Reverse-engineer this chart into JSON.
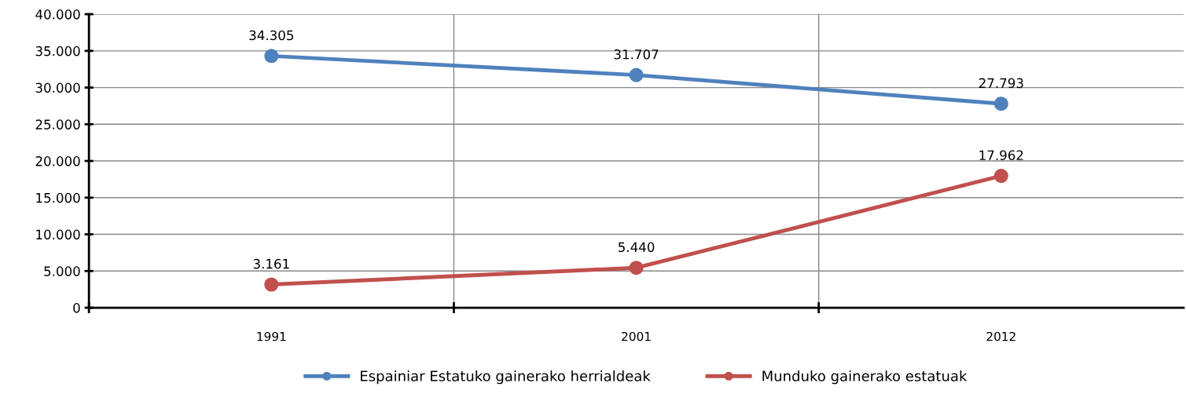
{
  "chart_data": {
    "type": "line",
    "categories": [
      "1991",
      "2001",
      "2012"
    ],
    "series": [
      {
        "name": "Espainiar Estatuko gainerako herrialdeak",
        "color": "#4f81bd",
        "values": [
          34305,
          31707,
          27793
        ]
      },
      {
        "name": "Munduko gainerako estatuak",
        "color": "#c0504d",
        "values": [
          3161,
          5440,
          17962
        ]
      }
    ],
    "ylim": [
      0,
      40000
    ],
    "yticks": [
      {
        "value": 0,
        "label": "0"
      },
      {
        "value": 5000,
        "label": "5.000"
      },
      {
        "value": 10000,
        "label": "10.000"
      },
      {
        "value": 15000,
        "label": "15.000"
      },
      {
        "value": 20000,
        "label": "20.000"
      },
      {
        "value": 25000,
        "label": "25.000"
      },
      {
        "value": 30000,
        "label": "30.000"
      },
      {
        "value": 35000,
        "label": "35.000"
      },
      {
        "value": 40000,
        "label": "40.000"
      }
    ],
    "value_labels": [
      [
        "34.305",
        "31.707",
        "27.793"
      ],
      [
        "3.161",
        "5.440",
        "17.962"
      ]
    ],
    "grid": true,
    "legend": "bottom",
    "marker": "circle",
    "line_style": "solid"
  }
}
